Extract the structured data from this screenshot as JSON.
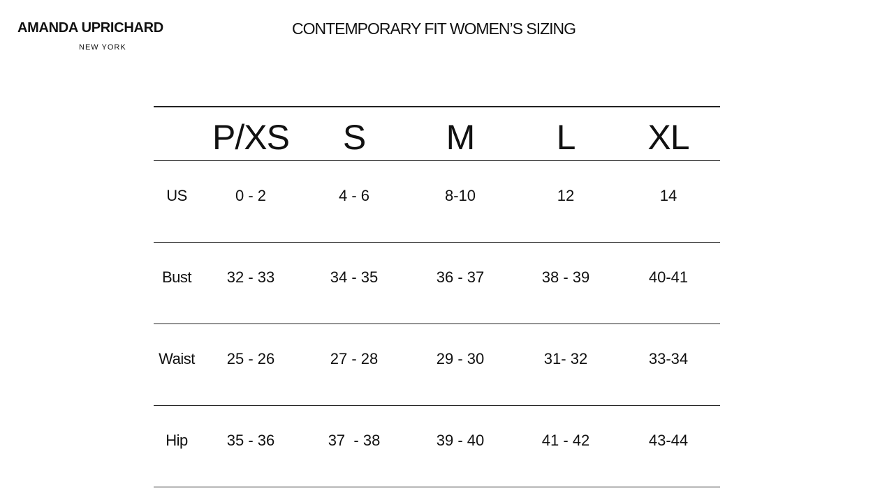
{
  "brand": {
    "name": "AMANDA UPRICHARD",
    "location": "NEW YORK"
  },
  "title": "CONTEMPORARY FIT WOMEN’S SIZING",
  "table": {
    "headers": [
      "P/XS",
      "S",
      "M",
      "L",
      "XL"
    ],
    "rows": [
      {
        "label": "US",
        "values": [
          "0 - 2",
          "4 - 6",
          "8-10",
          "12",
          "14"
        ]
      },
      {
        "label": "Bust",
        "values": [
          "32 - 33",
          "34 - 35",
          "36 - 37",
          "38 - 39",
          "40-41"
        ]
      },
      {
        "label": "Waist",
        "values": [
          "25 - 26",
          "27 - 28",
          "29 - 30",
          "31- 32",
          "33-34"
        ]
      },
      {
        "label": "Hip",
        "values": [
          "35 - 36",
          "37  - 38",
          "39 - 40",
          "41 - 42",
          "43-44"
        ]
      }
    ]
  }
}
